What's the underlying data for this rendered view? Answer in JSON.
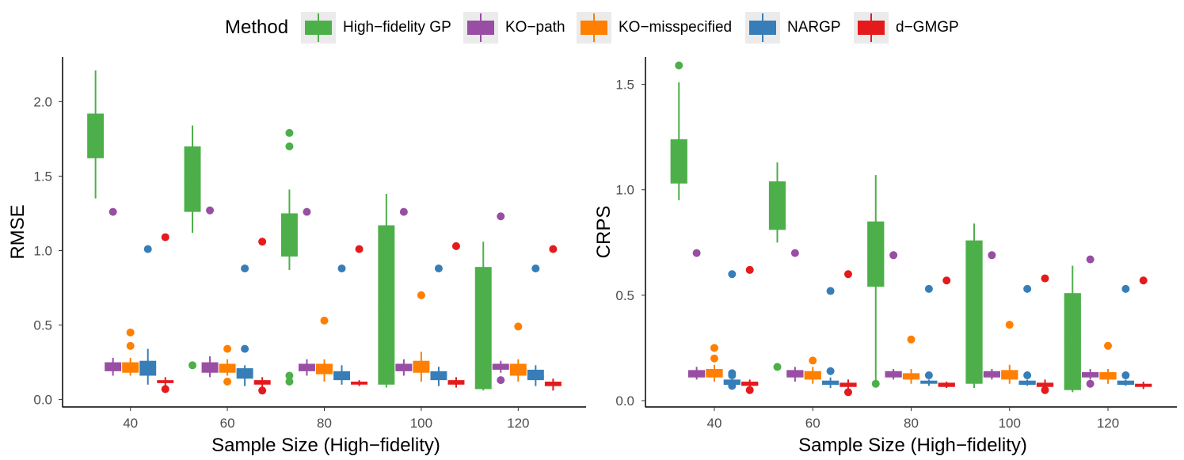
{
  "legend": {
    "title": "Method",
    "items": [
      {
        "name": "High−fidelity GP",
        "color": "#4daf4a"
      },
      {
        "name": "KO−path",
        "color": "#984ea3"
      },
      {
        "name": "KO−misspecified",
        "color": "#ff7f00"
      },
      {
        "name": "NARGP",
        "color": "#377eb8"
      },
      {
        "name": "d−GMGP",
        "color": "#e41a1c"
      }
    ]
  },
  "chart_data": [
    {
      "type": "box",
      "ylabel": "RMSE",
      "xlabel": "Sample Size (High−fidelity)",
      "categories": [
        "40",
        "60",
        "80",
        "100",
        "120"
      ],
      "ylim": [
        -0.05,
        2.3
      ],
      "yticks": [
        "0.0",
        "0.5",
        "1.0",
        "1.5",
        "2.0"
      ],
      "series": [
        {
          "name": "High−fidelity GP",
          "color": "#4daf4a",
          "boxes": [
            {
              "q1": 1.62,
              "median": 1.7,
              "q3": 1.92,
              "whisker_low": 1.35,
              "whisker_high": 2.21,
              "outliers": []
            },
            {
              "q1": 1.26,
              "median": 1.45,
              "q3": 1.7,
              "whisker_low": 1.12,
              "whisker_high": 1.84,
              "outliers": [
                0.23
              ]
            },
            {
              "q1": 0.96,
              "median": 1.1,
              "q3": 1.25,
              "whisker_low": 0.87,
              "whisker_high": 1.41,
              "outliers": [
                1.79,
                1.7,
                0.16,
                0.12
              ]
            },
            {
              "q1": 0.1,
              "median": 0.6,
              "q3": 1.17,
              "whisker_low": 0.08,
              "whisker_high": 1.38,
              "outliers": []
            },
            {
              "q1": 0.07,
              "median": 0.45,
              "q3": 0.89,
              "whisker_low": 0.06,
              "whisker_high": 1.06,
              "outliers": []
            }
          ]
        },
        {
          "name": "KO−path",
          "color": "#984ea3",
          "boxes": [
            {
              "q1": 0.19,
              "median": 0.22,
              "q3": 0.25,
              "whisker_low": 0.16,
              "whisker_high": 0.28,
              "outliers": [
                1.26
              ]
            },
            {
              "q1": 0.18,
              "median": 0.22,
              "q3": 0.25,
              "whisker_low": 0.15,
              "whisker_high": 0.29,
              "outliers": [
                1.27
              ]
            },
            {
              "q1": 0.19,
              "median": 0.22,
              "q3": 0.24,
              "whisker_low": 0.16,
              "whisker_high": 0.27,
              "outliers": [
                1.26
              ]
            },
            {
              "q1": 0.19,
              "median": 0.22,
              "q3": 0.24,
              "whisker_low": 0.16,
              "whisker_high": 0.27,
              "outliers": [
                1.26
              ]
            },
            {
              "q1": 0.2,
              "median": 0.22,
              "q3": 0.24,
              "whisker_low": 0.18,
              "whisker_high": 0.26,
              "outliers": [
                1.23,
                0.13
              ]
            }
          ]
        },
        {
          "name": "KO−misspecified",
          "color": "#ff7f00",
          "boxes": [
            {
              "q1": 0.18,
              "median": 0.22,
              "q3": 0.25,
              "whisker_low": 0.16,
              "whisker_high": 0.28,
              "outliers": [
                0.45,
                0.36
              ]
            },
            {
              "q1": 0.18,
              "median": 0.21,
              "q3": 0.24,
              "whisker_low": 0.16,
              "whisker_high": 0.27,
              "outliers": [
                0.34,
                0.12
              ]
            },
            {
              "q1": 0.17,
              "median": 0.2,
              "q3": 0.24,
              "whisker_low": 0.12,
              "whisker_high": 0.27,
              "outliers": [
                0.53
              ]
            },
            {
              "q1": 0.18,
              "median": 0.22,
              "q3": 0.26,
              "whisker_low": 0.12,
              "whisker_high": 0.32,
              "outliers": [
                0.7
              ]
            },
            {
              "q1": 0.16,
              "median": 0.21,
              "q3": 0.24,
              "whisker_low": 0.12,
              "whisker_high": 0.27,
              "outliers": [
                0.49
              ]
            }
          ]
        },
        {
          "name": "NARGP",
          "color": "#377eb8",
          "boxes": [
            {
              "q1": 0.16,
              "median": 0.22,
              "q3": 0.26,
              "whisker_low": 0.1,
              "whisker_high": 0.34,
              "outliers": [
                1.01
              ]
            },
            {
              "q1": 0.14,
              "median": 0.18,
              "q3": 0.21,
              "whisker_low": 0.09,
              "whisker_high": 0.23,
              "outliers": [
                0.88,
                0.34
              ]
            },
            {
              "q1": 0.13,
              "median": 0.16,
              "q3": 0.19,
              "whisker_low": 0.1,
              "whisker_high": 0.23,
              "outliers": [
                0.88
              ]
            },
            {
              "q1": 0.13,
              "median": 0.16,
              "q3": 0.19,
              "whisker_low": 0.09,
              "whisker_high": 0.22,
              "outliers": [
                0.88
              ]
            },
            {
              "q1": 0.13,
              "median": 0.15,
              "q3": 0.2,
              "whisker_low": 0.09,
              "whisker_high": 0.23,
              "outliers": [
                0.88
              ]
            }
          ]
        },
        {
          "name": "d−GMGP",
          "color": "#e41a1c",
          "boxes": [
            {
              "q1": 0.11,
              "median": 0.12,
              "q3": 0.13,
              "whisker_low": 0.09,
              "whisker_high": 0.15,
              "outliers": [
                1.09,
                0.07
              ]
            },
            {
              "q1": 0.1,
              "median": 0.11,
              "q3": 0.13,
              "whisker_low": 0.08,
              "whisker_high": 0.15,
              "outliers": [
                1.06,
                0.06
              ]
            },
            {
              "q1": 0.1,
              "median": 0.11,
              "q3": 0.12,
              "whisker_low": 0.09,
              "whisker_high": 0.13,
              "outliers": [
                1.01
              ]
            },
            {
              "q1": 0.1,
              "median": 0.11,
              "q3": 0.13,
              "whisker_low": 0.08,
              "whisker_high": 0.15,
              "outliers": [
                1.03
              ]
            },
            {
              "q1": 0.09,
              "median": 0.1,
              "q3": 0.12,
              "whisker_low": 0.06,
              "whisker_high": 0.14,
              "outliers": [
                1.01
              ]
            }
          ]
        }
      ]
    },
    {
      "type": "box",
      "ylabel": "CRPS",
      "xlabel": "Sample Size (High−fidelity)",
      "categories": [
        "40",
        "60",
        "80",
        "100",
        "120"
      ],
      "ylim": [
        -0.03,
        1.63
      ],
      "yticks": [
        "0.0",
        "0.5",
        "1.0",
        "1.5"
      ],
      "series": [
        {
          "name": "High−fidelity GP",
          "color": "#4daf4a",
          "boxes": [
            {
              "q1": 1.03,
              "median": 1.13,
              "q3": 1.24,
              "whisker_low": 0.95,
              "whisker_high": 1.51,
              "outliers": [
                1.59
              ]
            },
            {
              "q1": 0.81,
              "median": 0.92,
              "q3": 1.04,
              "whisker_low": 0.75,
              "whisker_high": 1.13,
              "outliers": [
                0.16
              ]
            },
            {
              "q1": 0.54,
              "median": 0.7,
              "q3": 0.85,
              "whisker_low": 0.08,
              "whisker_high": 1.07,
              "outliers": [
                0.08
              ]
            },
            {
              "q1": 0.08,
              "median": 0.4,
              "q3": 0.76,
              "whisker_low": 0.06,
              "whisker_high": 0.84,
              "outliers": []
            },
            {
              "q1": 0.05,
              "median": 0.3,
              "q3": 0.51,
              "whisker_low": 0.04,
              "whisker_high": 0.64,
              "outliers": []
            }
          ]
        },
        {
          "name": "KO−path",
          "color": "#984ea3",
          "boxes": [
            {
              "q1": 0.11,
              "median": 0.125,
              "q3": 0.145,
              "whisker_low": 0.1,
              "whisker_high": 0.16,
              "outliers": [
                0.7
              ]
            },
            {
              "q1": 0.11,
              "median": 0.125,
              "q3": 0.145,
              "whisker_low": 0.09,
              "whisker_high": 0.16,
              "outliers": [
                0.7
              ]
            },
            {
              "q1": 0.11,
              "median": 0.12,
              "q3": 0.14,
              "whisker_low": 0.1,
              "whisker_high": 0.15,
              "outliers": [
                0.69
              ]
            },
            {
              "q1": 0.11,
              "median": 0.12,
              "q3": 0.14,
              "whisker_low": 0.1,
              "whisker_high": 0.15,
              "outliers": [
                0.69
              ]
            },
            {
              "q1": 0.11,
              "median": 0.12,
              "q3": 0.135,
              "whisker_low": 0.1,
              "whisker_high": 0.15,
              "outliers": [
                0.67,
                0.08
              ]
            }
          ]
        },
        {
          "name": "KO−misspecified",
          "color": "#ff7f00",
          "boxes": [
            {
              "q1": 0.11,
              "median": 0.13,
              "q3": 0.15,
              "whisker_low": 0.09,
              "whisker_high": 0.17,
              "outliers": [
                0.25,
                0.2
              ]
            },
            {
              "q1": 0.1,
              "median": 0.12,
              "q3": 0.14,
              "whisker_low": 0.08,
              "whisker_high": 0.16,
              "outliers": [
                0.19
              ]
            },
            {
              "q1": 0.1,
              "median": 0.115,
              "q3": 0.13,
              "whisker_low": 0.08,
              "whisker_high": 0.15,
              "outliers": [
                0.29
              ]
            },
            {
              "q1": 0.1,
              "median": 0.125,
              "q3": 0.145,
              "whisker_low": 0.08,
              "whisker_high": 0.17,
              "outliers": [
                0.36
              ]
            },
            {
              "q1": 0.1,
              "median": 0.12,
              "q3": 0.135,
              "whisker_low": 0.08,
              "whisker_high": 0.15,
              "outliers": [
                0.26
              ]
            }
          ]
        },
        {
          "name": "NARGP",
          "color": "#377eb8",
          "boxes": [
            {
              "q1": 0.075,
              "median": 0.09,
              "q3": 0.1,
              "whisker_low": 0.06,
              "whisker_high": 0.12,
              "outliers": [
                0.6,
                0.13,
                0.12,
                0.07
              ]
            },
            {
              "q1": 0.075,
              "median": 0.085,
              "q3": 0.095,
              "whisker_low": 0.06,
              "whisker_high": 0.11,
              "outliers": [
                0.52,
                0.14
              ]
            },
            {
              "q1": 0.08,
              "median": 0.085,
              "q3": 0.095,
              "whisker_low": 0.07,
              "whisker_high": 0.1,
              "outliers": [
                0.53,
                0.12
              ]
            },
            {
              "q1": 0.075,
              "median": 0.085,
              "q3": 0.095,
              "whisker_low": 0.07,
              "whisker_high": 0.1,
              "outliers": [
                0.53,
                0.12
              ]
            },
            {
              "q1": 0.075,
              "median": 0.085,
              "q3": 0.095,
              "whisker_low": 0.07,
              "whisker_high": 0.1,
              "outliers": [
                0.53,
                0.12
              ]
            }
          ]
        },
        {
          "name": "d−GMGP",
          "color": "#e41a1c",
          "boxes": [
            {
              "q1": 0.07,
              "median": 0.08,
              "q3": 0.09,
              "whisker_low": 0.06,
              "whisker_high": 0.1,
              "outliers": [
                0.62,
                0.05
              ]
            },
            {
              "q1": 0.065,
              "median": 0.075,
              "q3": 0.085,
              "whisker_low": 0.055,
              "whisker_high": 0.1,
              "outliers": [
                0.6,
                0.04
              ]
            },
            {
              "q1": 0.065,
              "median": 0.075,
              "q3": 0.085,
              "whisker_low": 0.06,
              "whisker_high": 0.09,
              "outliers": [
                0.57
              ]
            },
            {
              "q1": 0.065,
              "median": 0.075,
              "q3": 0.085,
              "whisker_low": 0.055,
              "whisker_high": 0.1,
              "outliers": [
                0.58,
                0.05
              ]
            },
            {
              "q1": 0.065,
              "median": 0.07,
              "q3": 0.08,
              "whisker_low": 0.055,
              "whisker_high": 0.09,
              "outliers": [
                0.57
              ]
            }
          ]
        }
      ]
    }
  ]
}
